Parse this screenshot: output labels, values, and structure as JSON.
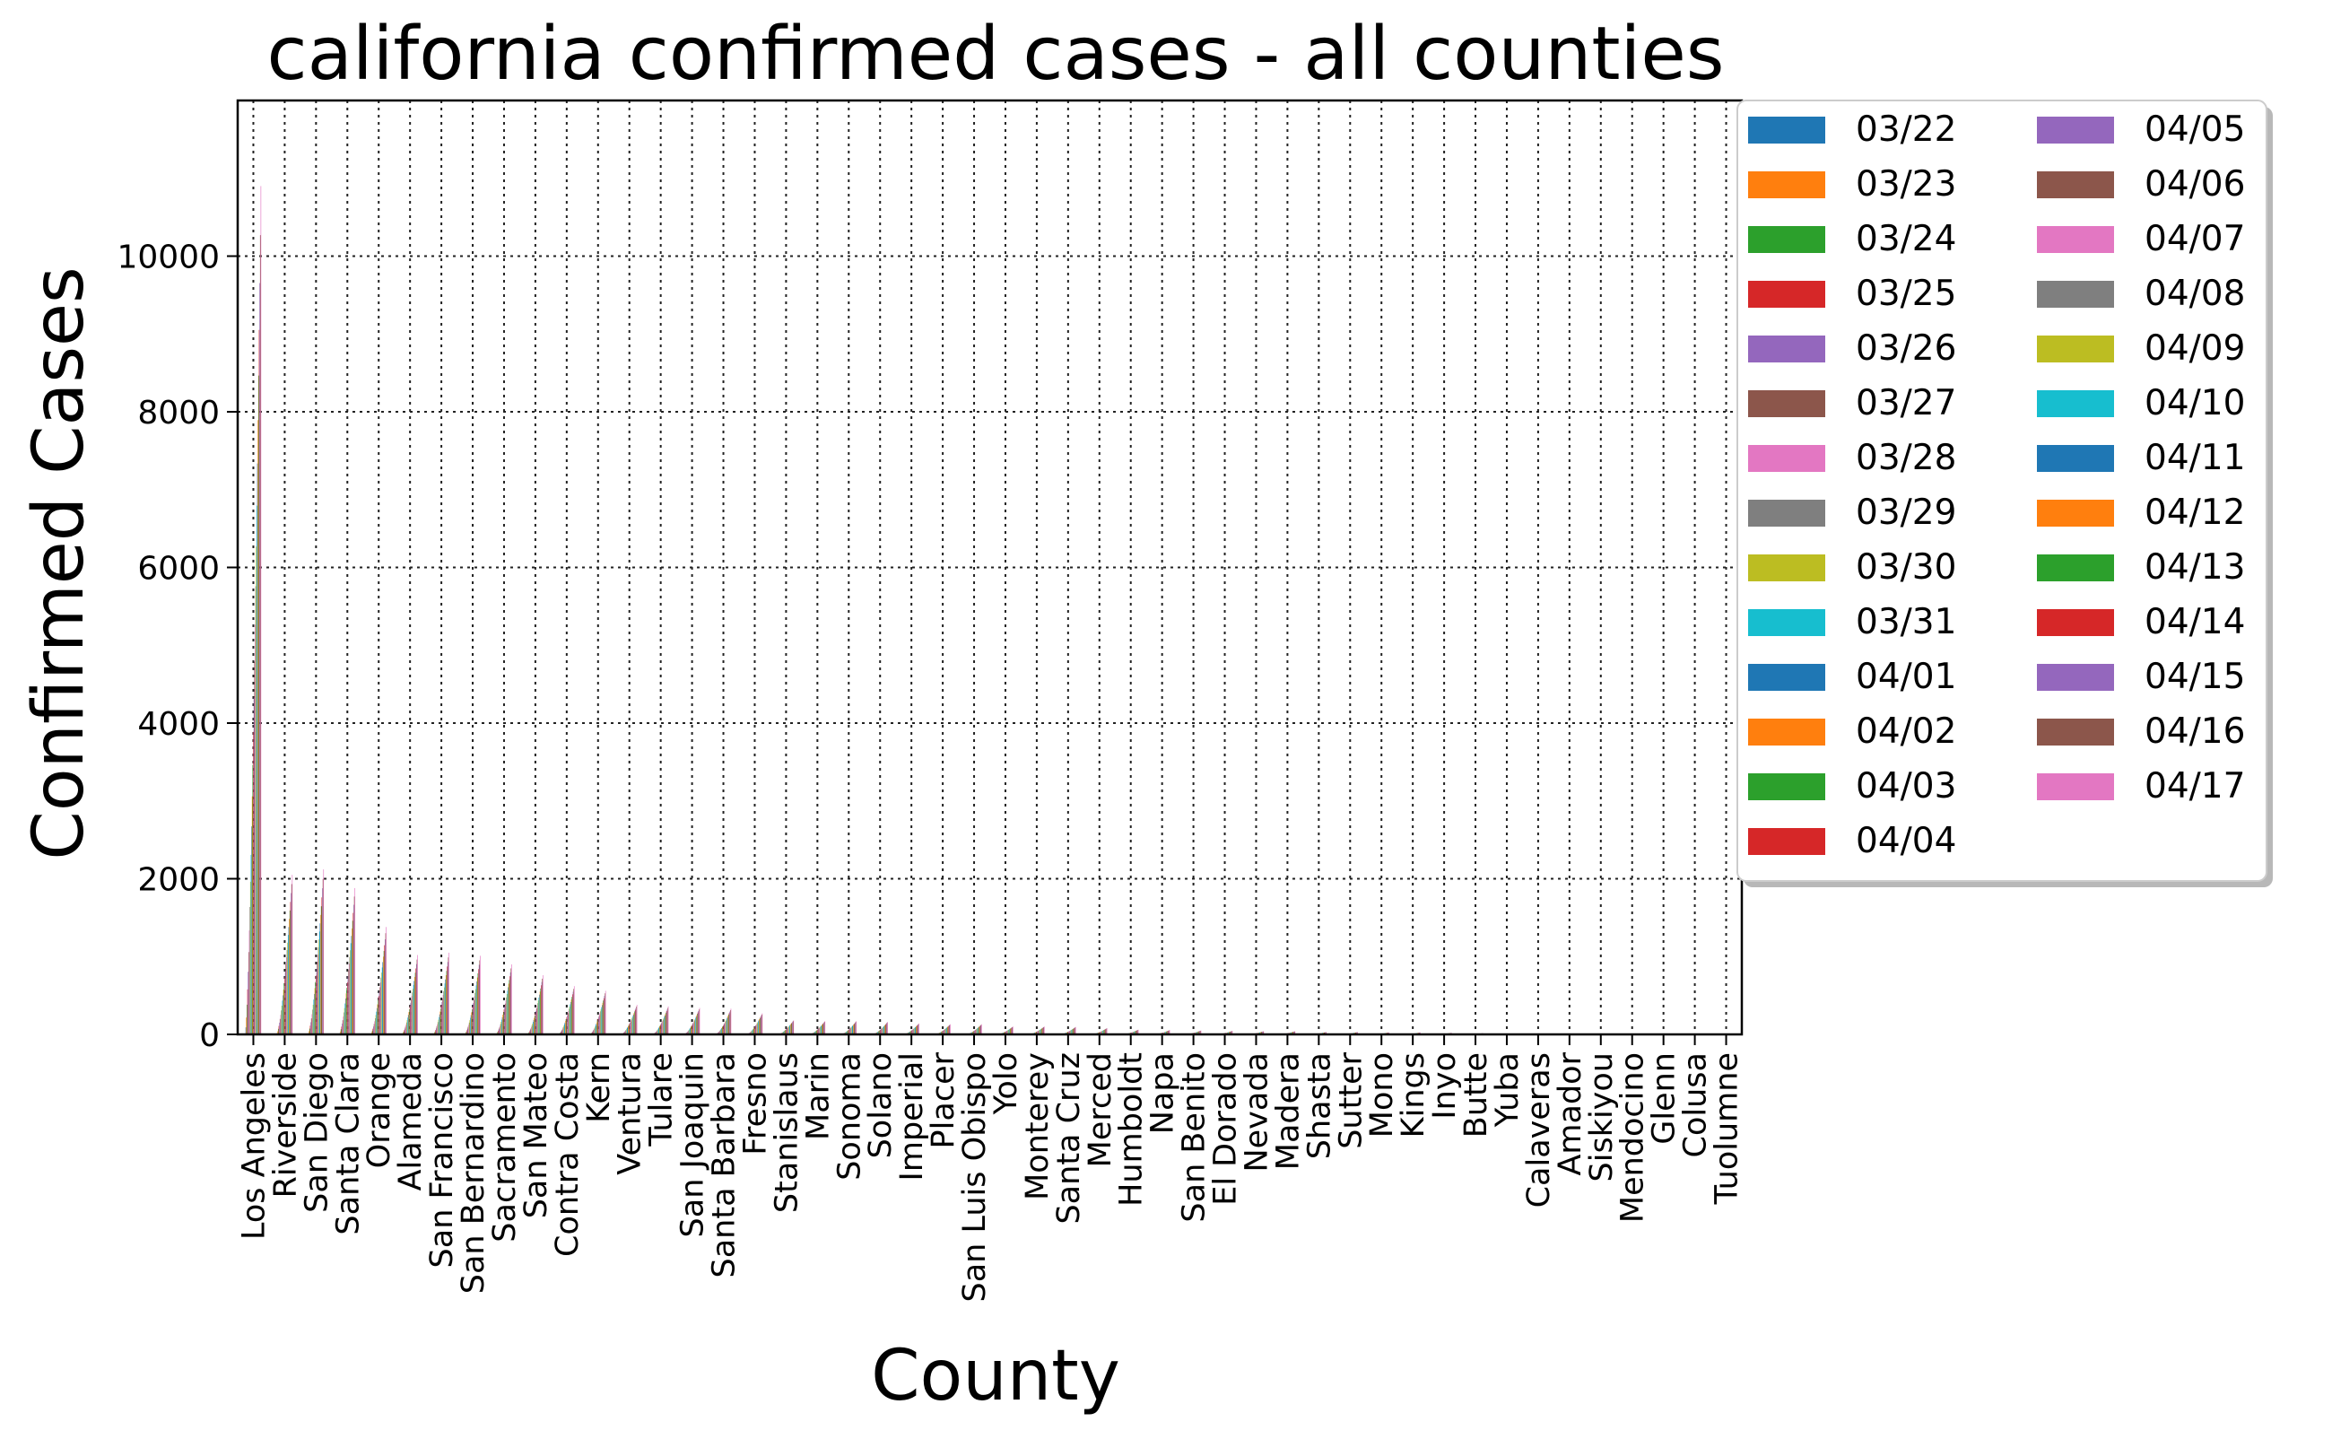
{
  "chart_data": {
    "type": "bar",
    "title": "california confirmed cases - all counties",
    "xlabel": "County",
    "ylabel": "Confirmed Cases",
    "ylim": [
      0,
      12000
    ],
    "yticks": [
      0,
      2000,
      4000,
      6000,
      8000,
      10000
    ],
    "grid": true,
    "legend_position": "upper right, outside plot, two columns",
    "categories": [
      "Los Angeles",
      "Riverside",
      "San Diego",
      "Santa Clara",
      "Orange",
      "Alameda",
      "San Francisco",
      "San Bernardino",
      "Sacramento",
      "San Mateo",
      "Contra Costa",
      "Kern",
      "Ventura",
      "Tulare",
      "San Joaquin",
      "Santa Barbara",
      "Fresno",
      "Stanislaus",
      "Marin",
      "Sonoma",
      "Solano",
      "Imperial",
      "Placer",
      "San Luis Obispo",
      "Yolo",
      "Monterey",
      "Santa Cruz",
      "Merced",
      "Humboldt",
      "Napa",
      "San Benito",
      "El Dorado",
      "Nevada",
      "Madera",
      "Shasta",
      "Sutter",
      "Mono",
      "Kings",
      "Inyo",
      "Butte",
      "Yuba",
      "Calaveras",
      "Amador",
      "Siskiyou",
      "Mendocino",
      "Glenn",
      "Colusa",
      "Tuolumne"
    ],
    "dates": [
      "03/22",
      "03/23",
      "03/24",
      "03/25",
      "03/26",
      "03/27",
      "03/28",
      "03/29",
      "03/30",
      "03/31",
      "04/01",
      "04/02",
      "04/03",
      "04/04",
      "04/05",
      "04/06",
      "04/07",
      "04/08",
      "04/09",
      "04/10",
      "04/11",
      "04/12",
      "04/13",
      "04/14",
      "04/15",
      "04/16",
      "04/17"
    ],
    "series_colors": [
      "#1f77b4",
      "#ff7f0e",
      "#2ca02c",
      "#d62728",
      "#9467bd",
      "#8c564b",
      "#e377c2",
      "#7f7f7f",
      "#bcbd22",
      "#17becf"
    ],
    "final_values_04_17": [
      10900,
      2050,
      2120,
      1880,
      1380,
      1020,
      1050,
      1010,
      900,
      760,
      620,
      560,
      380,
      360,
      340,
      330,
      270,
      180,
      170,
      170,
      160,
      140,
      130,
      130,
      100,
      100,
      95,
      80,
      60,
      55,
      50,
      45,
      40,
      40,
      30,
      30,
      25,
      25,
      20,
      15,
      10,
      10,
      10,
      8,
      6,
      5,
      4,
      3
    ]
  }
}
